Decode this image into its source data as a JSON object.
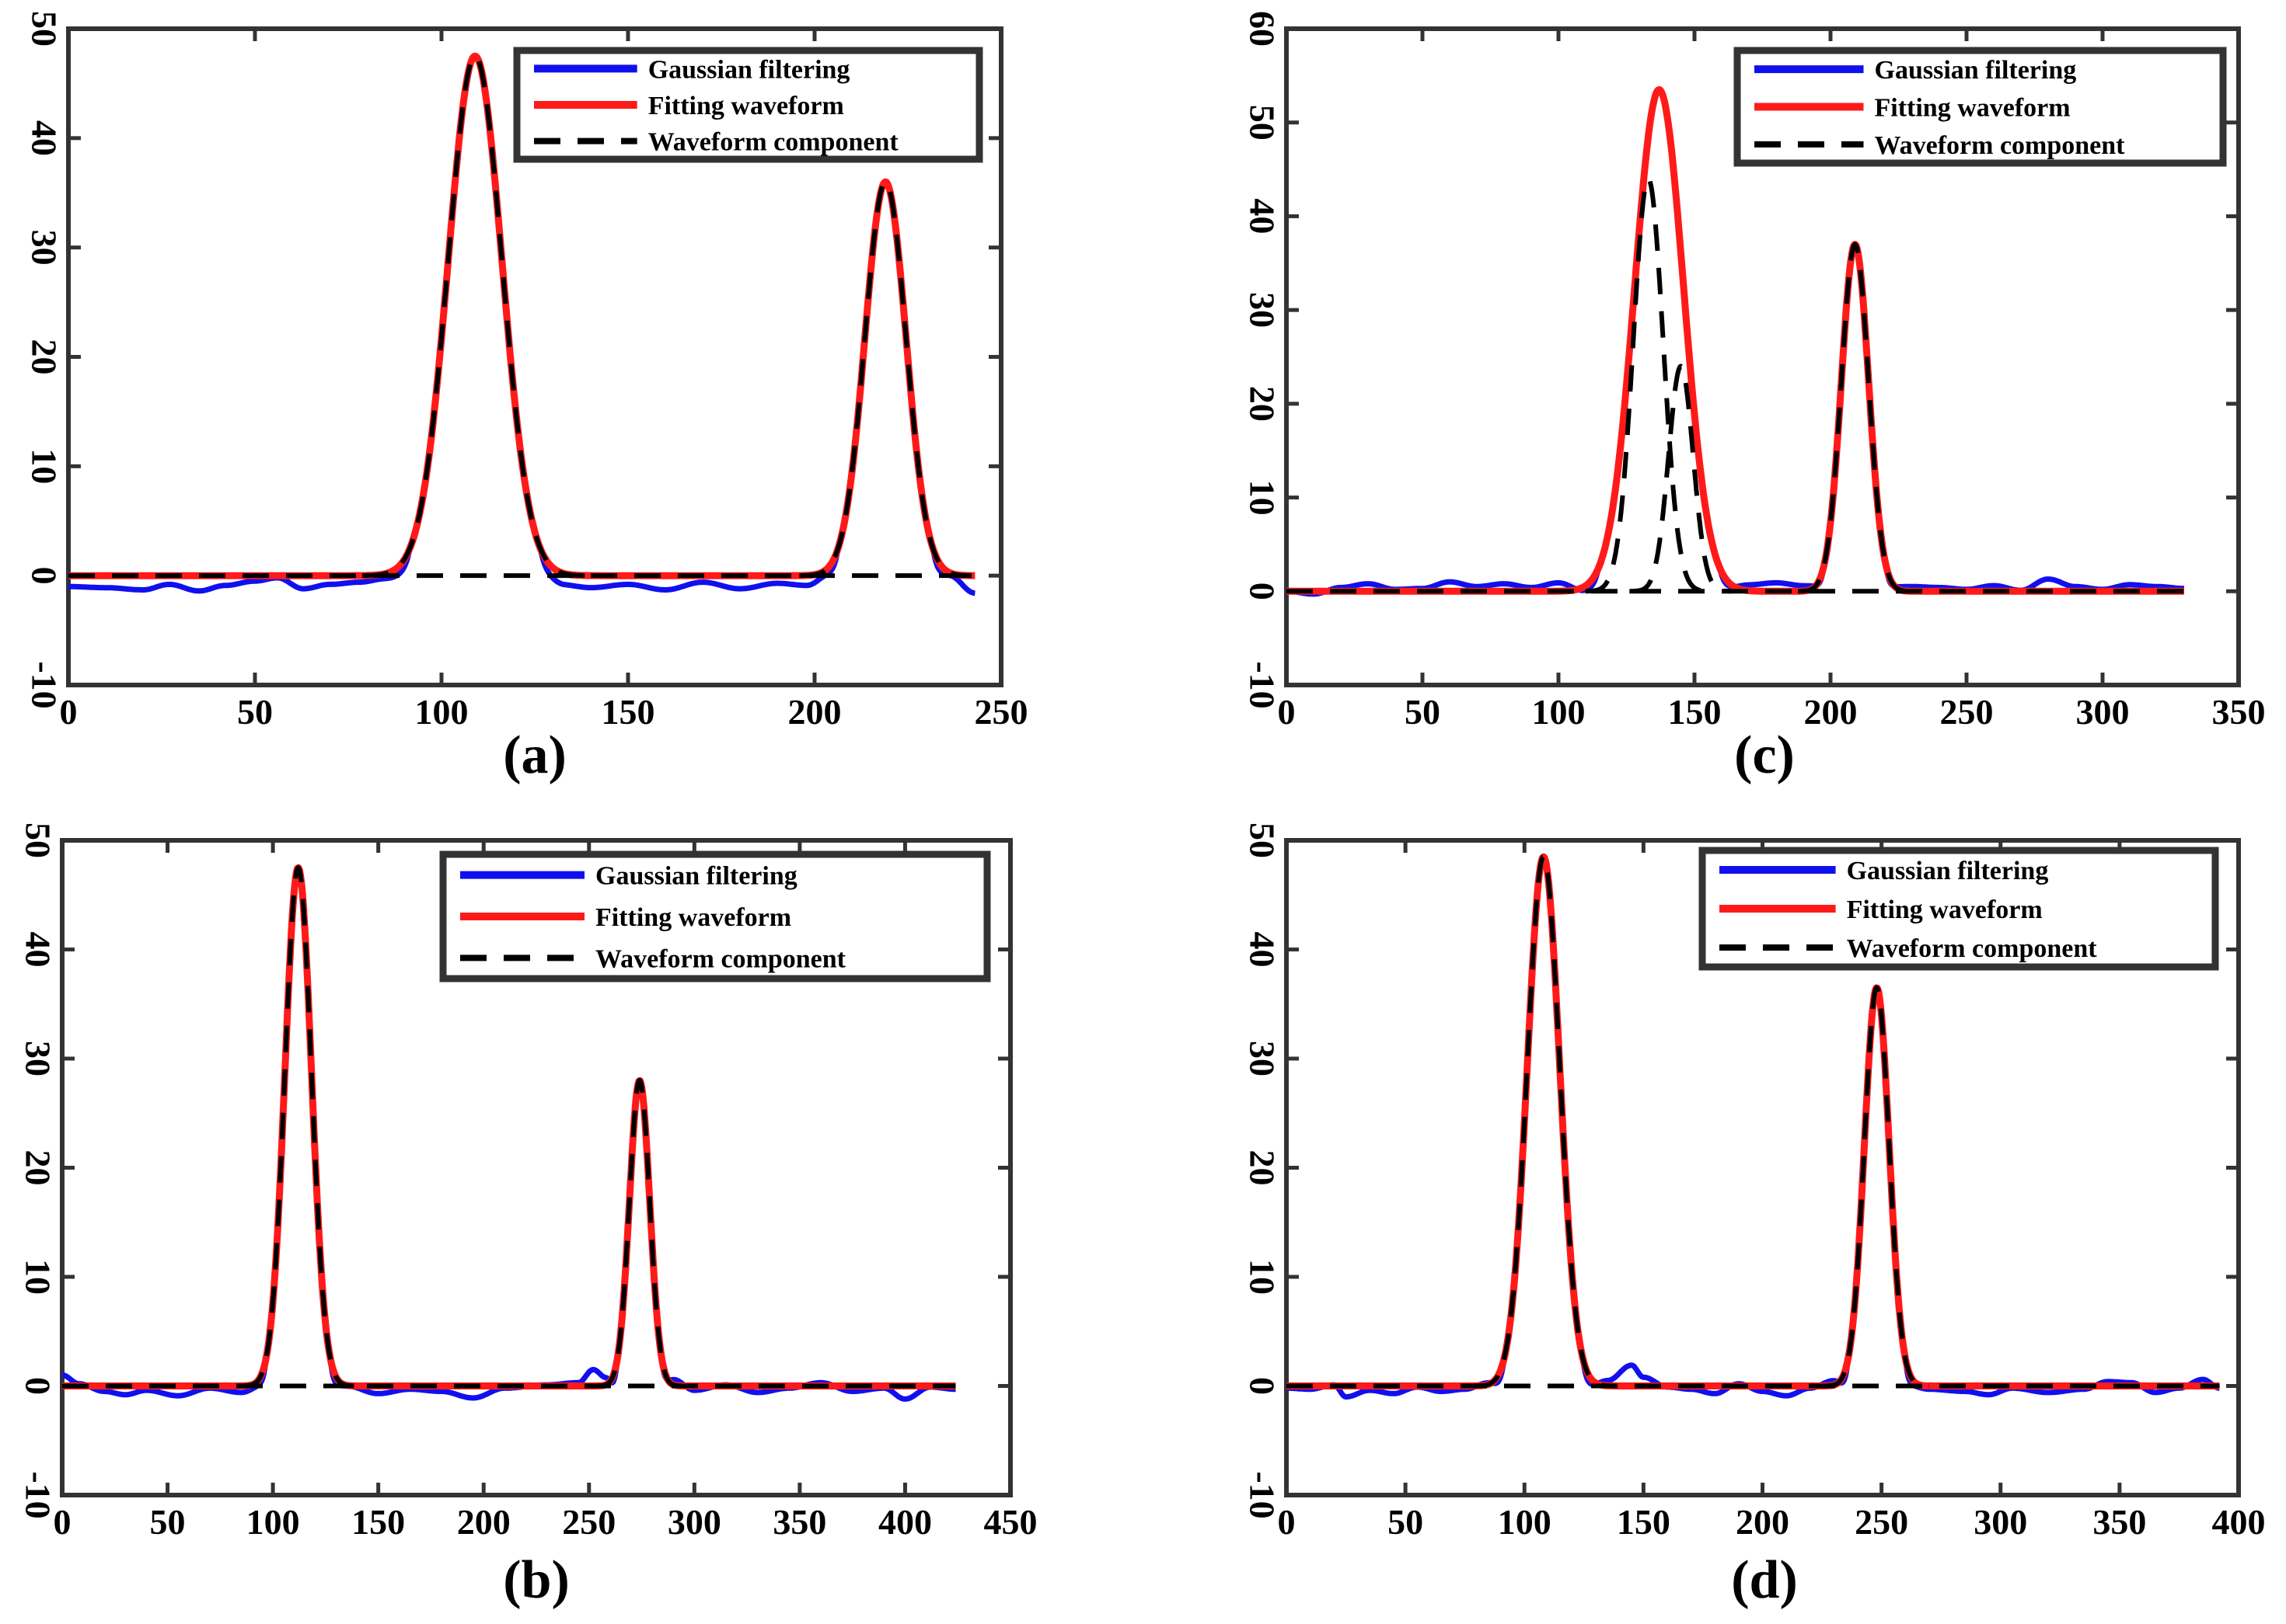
{
  "colors": {
    "gaussian": "#1010ee",
    "fitting": "#ff1a1a",
    "component": "#000000",
    "axis": "#333333"
  },
  "chart_data": [
    {
      "panel": "(a)",
      "type": "line",
      "xlim": [
        0,
        250
      ],
      "ylim": [
        -10,
        50
      ],
      "xticks": [
        0,
        50,
        100,
        150,
        200,
        250
      ],
      "yticks": [
        -10,
        0,
        10,
        20,
        30,
        40,
        50
      ],
      "legend": {
        "position": "top-right",
        "entries": [
          "Gaussian filtering",
          "Fitting waveform",
          "Waveform component"
        ]
      },
      "x_end": 243,
      "baseline": 0,
      "peaks": [
        {
          "center": 109,
          "amplitude": 47.5,
          "sigma": 7.2
        },
        {
          "center": 219,
          "amplitude": 36,
          "sigma": 5.5
        }
      ],
      "noise_points": [
        [
          0,
          -1
        ],
        [
          10,
          -1.1
        ],
        [
          20,
          -1.3
        ],
        [
          27,
          -0.8
        ],
        [
          35,
          -1.4
        ],
        [
          42,
          -0.9
        ],
        [
          50,
          -0.5
        ],
        [
          56,
          -0.2
        ],
        [
          63,
          -1.2
        ],
        [
          70,
          -0.8
        ],
        [
          78,
          -0.6
        ],
        [
          85,
          -0.3
        ],
        [
          95,
          0
        ],
        [
          125,
          0
        ],
        [
          133,
          -0.9
        ],
        [
          140,
          -1.1
        ],
        [
          150,
          -0.8
        ],
        [
          160,
          -1.3
        ],
        [
          170,
          -0.6
        ],
        [
          180,
          -1.2
        ],
        [
          190,
          -0.7
        ],
        [
          198,
          -0.9
        ],
        [
          204,
          0
        ],
        [
          236,
          0
        ],
        [
          243,
          -1.6
        ]
      ],
      "noise_region": [
        0,
        243
      ]
    },
    {
      "panel": "(b)",
      "type": "line",
      "xlim": [
        0,
        450
      ],
      "ylim": [
        -10,
        50
      ],
      "xticks": [
        0,
        50,
        100,
        150,
        200,
        250,
        300,
        350,
        400,
        450
      ],
      "yticks": [
        -10,
        0,
        10,
        20,
        30,
        40,
        50
      ],
      "legend": {
        "position": "top-right",
        "entries": [
          "Gaussian filtering",
          "Fitting waveform",
          "Waveform component"
        ]
      },
      "x_end": 424,
      "baseline": 0,
      "peaks": [
        {
          "center": 112,
          "amplitude": 47.5,
          "sigma": 6.3
        },
        {
          "center": 274,
          "amplitude": 28,
          "sigma": 4.8
        }
      ],
      "noise_points": [
        [
          0,
          1
        ],
        [
          8,
          0.2
        ],
        [
          20,
          -0.5
        ],
        [
          30,
          -0.8
        ],
        [
          40,
          -0.4
        ],
        [
          55,
          -0.9
        ],
        [
          70,
          -0.2
        ],
        [
          85,
          -0.6
        ],
        [
          95,
          0
        ],
        [
          135,
          0
        ],
        [
          150,
          -0.7
        ],
        [
          165,
          -0.3
        ],
        [
          180,
          -0.5
        ],
        [
          195,
          -1.1
        ],
        [
          210,
          -0.2
        ],
        [
          230,
          0.1
        ],
        [
          245,
          0.3
        ],
        [
          252,
          1.5
        ],
        [
          258,
          0.8
        ],
        [
          262,
          0
        ],
        [
          290,
          0.6
        ],
        [
          300,
          -0.4
        ],
        [
          315,
          0.1
        ],
        [
          330,
          -0.6
        ],
        [
          345,
          -0.2
        ],
        [
          360,
          0.3
        ],
        [
          375,
          -0.5
        ],
        [
          390,
          -0.2
        ],
        [
          400,
          -1.2
        ],
        [
          412,
          -0.1
        ],
        [
          424,
          -0.3
        ]
      ],
      "noise_region": [
        0,
        424
      ]
    },
    {
      "panel": "(c)",
      "type": "line",
      "xlim": [
        0,
        350
      ],
      "ylim": [
        -10,
        60
      ],
      "xticks": [
        0,
        50,
        100,
        150,
        200,
        250,
        300,
        350
      ],
      "yticks": [
        -10,
        0,
        10,
        20,
        30,
        40,
        50,
        60
      ],
      "legend": {
        "position": "top-right",
        "entries": [
          "Gaussian filtering",
          "Fitting waveform",
          "Waveform component"
        ]
      },
      "x_end": 330,
      "baseline": 0,
      "peaks": [
        {
          "center": 133,
          "amplitude": 44,
          "sigma": 5.5
        },
        {
          "center": 145,
          "amplitude": 24,
          "sigma": 4.5
        },
        {
          "center": 209,
          "amplitude": 37,
          "sigma": 5
        }
      ],
      "fit_peaks": [
        {
          "center": 137,
          "amplitude": 53.5,
          "sigma": 9
        },
        {
          "center": 209,
          "amplitude": 37,
          "sigma": 5
        }
      ],
      "noise_points": [
        [
          0,
          0
        ],
        [
          10,
          -0.3
        ],
        [
          20,
          0.4
        ],
        [
          30,
          0.8
        ],
        [
          40,
          0.2
        ],
        [
          50,
          0.3
        ],
        [
          60,
          1
        ],
        [
          70,
          0.5
        ],
        [
          80,
          0.8
        ],
        [
          90,
          0.4
        ],
        [
          100,
          0.9
        ],
        [
          110,
          0
        ],
        [
          160,
          0.3
        ],
        [
          170,
          0.7
        ],
        [
          180,
          0.9
        ],
        [
          190,
          0.6
        ],
        [
          230,
          0.5
        ],
        [
          240,
          0.4
        ],
        [
          250,
          0.2
        ],
        [
          260,
          0.6
        ],
        [
          270,
          0.1
        ],
        [
          280,
          1.3
        ],
        [
          290,
          0.5
        ],
        [
          300,
          0.2
        ],
        [
          310,
          0.7
        ],
        [
          320,
          0.5
        ],
        [
          330,
          0.3
        ]
      ],
      "noise_region": [
        0,
        330
      ]
    },
    {
      "panel": "(d)",
      "type": "line",
      "xlim": [
        0,
        400
      ],
      "ylim": [
        -10,
        50
      ],
      "xticks": [
        0,
        50,
        100,
        150,
        200,
        250,
        300,
        350,
        400
      ],
      "yticks": [
        -10,
        0,
        10,
        20,
        30,
        40,
        50
      ],
      "legend": {
        "position": "top-right",
        "entries": [
          "Gaussian filtering",
          "Fitting waveform",
          "Waveform component"
        ]
      },
      "x_end": 392,
      "baseline": 0,
      "peaks": [
        {
          "center": 108,
          "amplitude": 48.5,
          "sigma": 6.8
        },
        {
          "center": 248,
          "amplitude": 36.5,
          "sigma": 5.2
        }
      ],
      "noise_points": [
        [
          0,
          -0.2
        ],
        [
          10,
          -0.3
        ],
        [
          20,
          0.1
        ],
        [
          25,
          -1
        ],
        [
          35,
          -0.4
        ],
        [
          45,
          -0.7
        ],
        [
          55,
          -0.1
        ],
        [
          65,
          -0.5
        ],
        [
          75,
          -0.3
        ],
        [
          85,
          0.3
        ],
        [
          90,
          0
        ],
        [
          127,
          0
        ],
        [
          135,
          0.5
        ],
        [
          145,
          1.9
        ],
        [
          150,
          0.8
        ],
        [
          160,
          -0.1
        ],
        [
          170,
          -0.3
        ],
        [
          180,
          -0.7
        ],
        [
          190,
          0.2
        ],
        [
          200,
          -0.5
        ],
        [
          210,
          -0.9
        ],
        [
          220,
          -0.2
        ],
        [
          230,
          0.5
        ],
        [
          235,
          0
        ],
        [
          262,
          0
        ],
        [
          270,
          -0.3
        ],
        [
          285,
          -0.5
        ],
        [
          295,
          -0.8
        ],
        [
          305,
          -0.2
        ],
        [
          320,
          -0.6
        ],
        [
          335,
          -0.3
        ],
        [
          345,
          0.4
        ],
        [
          355,
          0.3
        ],
        [
          365,
          -0.6
        ],
        [
          375,
          -0.2
        ],
        [
          385,
          0.6
        ],
        [
          392,
          -0.2
        ]
      ],
      "noise_region": [
        0,
        392
      ]
    }
  ]
}
